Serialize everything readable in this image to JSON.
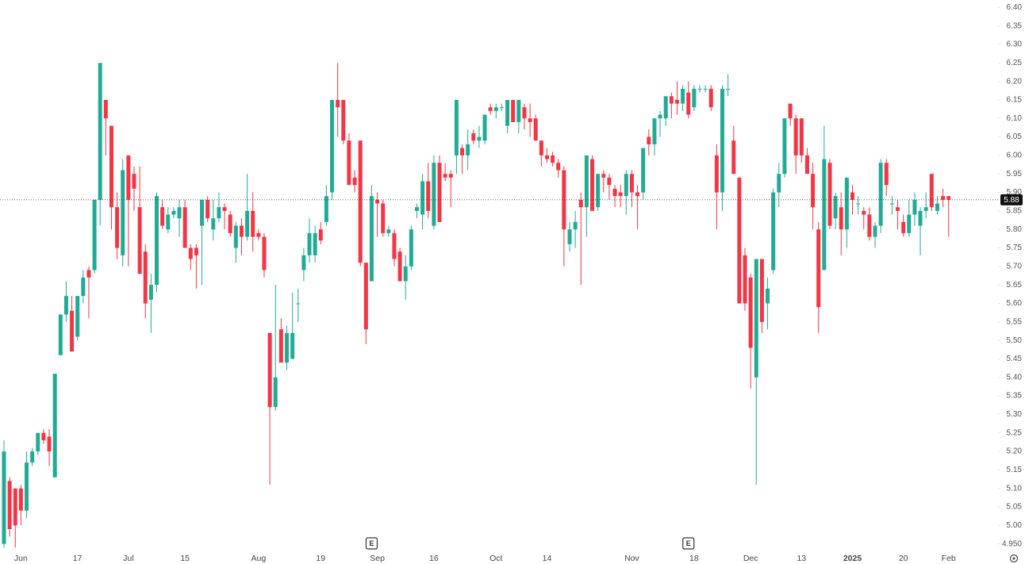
{
  "chart_data": {
    "type": "candlestick",
    "up_color": "#22ab94",
    "down_color": "#f23645",
    "ylim": [
      4.93,
      6.42
    ],
    "yticks": [
      {
        "value": 6.4,
        "label": "6.40"
      },
      6.35,
      {
        "value": 6.3,
        "label": "6.30"
      },
      6.25,
      {
        "value": 6.2,
        "label": "6.20"
      },
      6.15,
      {
        "value": 6.1,
        "label": "6.10"
      },
      6.05,
      {
        "value": 6.0,
        "label": "6.00"
      },
      5.95,
      {
        "value": 5.9,
        "label": "5.90"
      },
      5.85,
      {
        "value": 5.8,
        "label": "5.80"
      },
      5.75,
      {
        "value": 5.7,
        "label": "5.70"
      },
      5.65,
      {
        "value": 5.6,
        "label": "5.60"
      },
      5.55,
      {
        "value": 5.5,
        "label": "5.50"
      },
      5.45,
      {
        "value": 5.4,
        "label": "5.40"
      },
      5.35,
      {
        "value": 5.3,
        "label": "5.30"
      },
      5.25,
      {
        "value": 5.2,
        "label": "5.20"
      },
      5.15,
      {
        "value": 5.1,
        "label": "5.10"
      },
      5.05,
      {
        "value": 5.0,
        "label": "5.00"
      },
      {
        "value": 4.95,
        "label": "4.950"
      }
    ],
    "last_price": 5.88,
    "categories": [
      null,
      null,
      null,
      "Jun",
      null,
      null,
      null,
      null,
      null,
      null,
      null,
      null,
      null,
      "17",
      null,
      null,
      null,
      null,
      null,
      null,
      null,
      null,
      "Jul",
      null,
      null,
      null,
      null,
      null,
      null,
      null,
      null,
      null,
      "15",
      null,
      null,
      null,
      null,
      null,
      null,
      null,
      null,
      null,
      null,
      null,
      null,
      "Aug",
      null,
      null,
      null,
      null,
      null,
      null,
      null,
      null,
      null,
      null,
      "19",
      null,
      null,
      null,
      null,
      null,
      null,
      null,
      null,
      null,
      "Sep",
      null,
      null,
      null,
      null,
      null,
      null,
      null,
      null,
      null,
      "16",
      null,
      null,
      null,
      null,
      null,
      null,
      null,
      null,
      null,
      null,
      "Oct",
      null,
      null,
      null,
      null,
      null,
      null,
      null,
      null,
      "14",
      null,
      null,
      null,
      null,
      null,
      null,
      null,
      null,
      null,
      null,
      null,
      null,
      null,
      null,
      "Nov",
      null,
      null,
      null,
      null,
      null,
      null,
      null,
      null,
      null,
      null,
      "18",
      null,
      null,
      null,
      null,
      null,
      null,
      null,
      null,
      null,
      "Dec",
      null,
      null,
      null,
      null,
      null,
      null,
      null,
      null,
      "13",
      null,
      null,
      null,
      null,
      null,
      null,
      null,
      null,
      "2025",
      null,
      null,
      null,
      null,
      null,
      null,
      null,
      null,
      "20",
      null,
      null,
      null,
      null,
      null,
      null,
      null,
      "Feb"
    ],
    "events": [
      null,
      null,
      null,
      null,
      null,
      null,
      null,
      null,
      null,
      null,
      null,
      null,
      null,
      null,
      null,
      null,
      null,
      null,
      null,
      null,
      null,
      null,
      null,
      null,
      null,
      null,
      null,
      null,
      null,
      null,
      null,
      null,
      null,
      null,
      null,
      null,
      null,
      null,
      null,
      null,
      null,
      null,
      null,
      null,
      null,
      null,
      null,
      null,
      null,
      null,
      null,
      null,
      null,
      null,
      null,
      null,
      null,
      null,
      null,
      null,
      null,
      null,
      null,
      null,
      null,
      "E",
      null,
      null,
      null,
      null,
      null,
      null,
      null,
      null,
      null,
      null,
      null,
      null,
      null,
      null,
      null,
      null,
      null,
      null,
      null,
      null,
      null,
      null,
      null,
      null,
      null,
      null,
      null,
      null,
      null,
      null,
      null,
      null,
      null,
      null,
      null,
      null,
      null,
      null,
      null,
      null,
      null,
      null,
      null,
      null,
      null,
      null,
      null,
      null,
      null,
      null,
      null,
      null,
      null,
      null,
      null,
      "E",
      null,
      null,
      null,
      null,
      null,
      null,
      null,
      null,
      null,
      null,
      null,
      null,
      null,
      null,
      null,
      null,
      null,
      null,
      null,
      null,
      null,
      null,
      null,
      null,
      null,
      null,
      null,
      null,
      null,
      null,
      null,
      null,
      null,
      null,
      null,
      null,
      null,
      null,
      null,
      null,
      null,
      null,
      null,
      null,
      null,
      null
    ],
    "open": [
      4.95,
      5.12,
      5.1,
      5.1,
      5.04,
      5.17,
      5.2,
      5.25,
      5.24,
      5.13,
      5.46,
      5.57,
      5.58,
      5.51,
      5.62,
      5.69,
      5.69,
      5.88,
      6.15,
      6.08,
      5.86,
      5.73,
      6.0,
      5.95,
      5.86,
      5.74,
      5.61,
      5.65,
      5.86,
      5.8,
      5.84,
      5.83,
      5.86,
      5.75,
      5.75,
      5.81,
      5.88,
      5.8,
      5.83,
      5.86,
      5.84,
      5.75,
      5.81,
      5.78,
      5.85,
      5.79,
      5.78,
      5.52,
      5.32,
      5.53,
      5.44,
      5.45,
      5.6,
      5.69,
      5.73,
      5.73,
      5.8,
      5.82,
      5.9,
      6.15,
      6.15,
      6.04,
      5.94,
      6.04,
      5.71,
      5.66,
      5.88,
      5.87,
      5.79,
      5.79,
      5.74,
      5.66,
      5.7,
      5.85,
      5.84,
      5.93,
      5.81,
      5.98,
      5.95,
      5.95,
      6.0,
      6.02,
      6.0,
      6.06,
      6.04,
      6.04,
      6.13,
      6.12,
      6.13,
      6.08,
      6.15,
      6.09,
      6.13,
      6.1,
      6.1,
      6.04,
      6.0,
      6.0,
      5.98,
      5.96,
      5.76,
      5.8,
      5.88,
      5.86,
      5.99,
      5.86,
      5.95,
      5.94,
      5.91,
      5.9,
      5.89,
      5.95,
      5.9,
      5.9,
      6.05,
      6.03,
      6.1,
      6.1,
      6.16,
      6.15,
      6.14,
      6.17,
      6.13,
      6.18,
      6.18,
      6.18,
      6.0,
      5.9,
      6.18,
      6.04,
      5.94,
      5.73,
      5.67,
      5.4,
      5.72,
      5.6,
      5.69,
      5.9,
      5.95,
      6.14,
      6.1,
      6.1,
      6.0,
      5.95,
      5.8,
      5.69,
      5.98,
      5.83,
      5.86,
      5.8,
      5.9,
      5.87,
      5.85,
      5.84,
      5.78,
      5.81,
      5.98,
      5.87,
      5.86,
      5.82,
      5.79,
      5.84,
      5.81,
      5.85,
      5.95,
      5.85,
      5.89,
      5.89
    ],
    "high": [
      5.23,
      5.13,
      5.1,
      5.11,
      5.2,
      5.21,
      5.25,
      5.26,
      5.26,
      5.41,
      5.57,
      5.66,
      5.62,
      5.62,
      5.69,
      5.7,
      5.88,
      6.25,
      6.15,
      6.08,
      5.9,
      5.99,
      6.0,
      5.97,
      5.97,
      5.76,
      5.68,
      5.9,
      5.88,
      5.86,
      5.86,
      5.88,
      5.88,
      5.76,
      5.76,
      5.88,
      5.89,
      5.88,
      5.9,
      5.87,
      5.85,
      5.82,
      5.83,
      5.95,
      5.9,
      5.8,
      5.79,
      5.52,
      5.65,
      5.56,
      5.54,
      5.63,
      5.64,
      5.75,
      5.83,
      5.81,
      5.82,
      5.92,
      6.15,
      6.25,
      6.15,
      6.06,
      5.96,
      6.04,
      5.71,
      5.92,
      5.9,
      5.88,
      5.81,
      5.8,
      5.75,
      5.73,
      5.81,
      5.87,
      5.95,
      5.98,
      6.0,
      6.0,
      5.98,
      5.96,
      6.15,
      6.03,
      6.07,
      6.07,
      6.08,
      6.11,
      6.14,
      6.14,
      6.14,
      6.15,
      6.15,
      6.15,
      6.14,
      6.14,
      6.11,
      6.04,
      6.02,
      6.01,
      5.99,
      5.97,
      5.82,
      5.85,
      5.9,
      6.0,
      6.0,
      5.95,
      5.96,
      5.95,
      5.92,
      5.92,
      5.96,
      5.96,
      5.92,
      6.02,
      6.07,
      6.1,
      6.12,
      6.16,
      6.17,
      6.2,
      6.19,
      6.2,
      6.19,
      6.19,
      6.19,
      6.19,
      6.03,
      6.19,
      6.22,
      6.08,
      5.94,
      5.75,
      5.68,
      5.72,
      5.72,
      5.67,
      5.91,
      5.98,
      6.1,
      6.14,
      6.11,
      6.1,
      6.02,
      5.98,
      5.82,
      6.08,
      5.99,
      5.9,
      5.9,
      5.94,
      5.92,
      5.89,
      5.86,
      5.86,
      5.82,
      5.99,
      5.99,
      5.89,
      5.88,
      5.84,
      5.88,
      5.9,
      5.86,
      5.9,
      5.95,
      5.89,
      5.91,
      5.89
    ],
    "low": [
      4.94,
      4.97,
      4.94,
      5.0,
      5.02,
      5.16,
      5.19,
      5.22,
      5.16,
      5.13,
      5.46,
      5.55,
      5.47,
      5.5,
      5.6,
      5.56,
      5.68,
      5.81,
      6.0,
      5.8,
      5.72,
      5.7,
      5.7,
      5.85,
      5.68,
      5.56,
      5.52,
      5.63,
      5.8,
      5.79,
      5.83,
      5.78,
      5.75,
      5.69,
      5.64,
      5.65,
      5.82,
      5.77,
      5.82,
      5.8,
      5.78,
      5.71,
      5.73,
      5.77,
      5.74,
      5.77,
      5.67,
      5.11,
      5.31,
      5.44,
      5.42,
      5.45,
      5.55,
      5.66,
      5.71,
      5.71,
      5.76,
      5.81,
      5.88,
      6.05,
      6.03,
      5.92,
      5.9,
      5.7,
      5.49,
      5.66,
      5.78,
      5.78,
      5.78,
      5.7,
      5.66,
      5.61,
      5.69,
      5.83,
      5.8,
      5.83,
      5.8,
      5.82,
      5.93,
      5.86,
      5.95,
      5.95,
      5.96,
      6.03,
      6.02,
      6.03,
      6.11,
      6.1,
      6.12,
      6.06,
      6.09,
      6.06,
      6.07,
      6.05,
      6.04,
      5.97,
      5.98,
      5.97,
      5.94,
      5.7,
      5.74,
      5.75,
      5.65,
      5.78,
      5.85,
      5.85,
      5.9,
      5.88,
      5.86,
      5.86,
      5.84,
      5.86,
      5.8,
      5.88,
      6.0,
      6.0,
      6.05,
      6.08,
      6.1,
      6.11,
      6.12,
      6.1,
      6.12,
      6.17,
      6.17,
      6.12,
      5.8,
      5.85,
      6.16,
      5.95,
      5.6,
      5.58,
      5.37,
      5.11,
      5.52,
      5.53,
      5.68,
      5.86,
      5.94,
      6.08,
      5.95,
      5.98,
      5.95,
      5.8,
      5.52,
      5.69,
      5.8,
      5.8,
      5.73,
      5.75,
      5.84,
      5.84,
      5.8,
      5.77,
      5.75,
      5.79,
      5.89,
      5.84,
      5.8,
      5.78,
      5.78,
      5.81,
      5.73,
      5.83,
      5.85,
      5.84,
      5.86,
      5.78
    ],
    "close": [
      5.2,
      4.99,
      5.0,
      5.04,
      5.17,
      5.2,
      5.25,
      5.23,
      5.2,
      5.41,
      5.57,
      5.62,
      5.47,
      5.62,
      5.67,
      5.67,
      5.88,
      6.25,
      6.1,
      5.86,
      5.75,
      5.96,
      5.88,
      5.91,
      5.68,
      5.6,
      5.65,
      5.89,
      5.81,
      5.84,
      5.85,
      5.86,
      5.75,
      5.72,
      5.73,
      5.88,
      5.83,
      5.83,
      5.86,
      5.85,
      5.79,
      5.81,
      5.78,
      5.85,
      5.78,
      5.78,
      5.69,
      5.32,
      5.4,
      5.44,
      5.52,
      5.52,
      5.6,
      5.73,
      5.79,
      5.79,
      5.77,
      5.89,
      6.15,
      6.13,
      6.04,
      5.92,
      5.92,
      5.71,
      5.53,
      5.89,
      5.87,
      5.79,
      5.8,
      5.72,
      5.66,
      5.7,
      5.8,
      5.86,
      5.93,
      5.85,
      5.98,
      5.82,
      5.94,
      5.94,
      6.15,
      6.0,
      6.03,
      6.04,
      6.05,
      6.11,
      6.12,
      6.13,
      6.13,
      6.15,
      6.09,
      6.15,
      6.1,
      6.09,
      6.04,
      6.0,
      5.99,
      5.98,
      5.96,
      5.8,
      5.8,
      5.82,
      5.86,
      6.0,
      5.85,
      5.95,
      5.94,
      5.92,
      5.89,
      5.89,
      5.95,
      5.9,
      5.89,
      6.02,
      6.03,
      6.1,
      6.11,
      6.16,
      6.14,
      6.14,
      6.18,
      6.11,
      6.18,
      6.18,
      6.18,
      6.13,
      5.9,
      6.18,
      6.18,
      5.95,
      5.6,
      5.6,
      5.48,
      5.72,
      5.55,
      5.64,
      5.9,
      5.95,
      6.1,
      6.1,
      6.0,
      6.0,
      5.95,
      5.86,
      5.59,
      5.99,
      5.81,
      5.89,
      5.8,
      5.94,
      5.88,
      5.87,
      5.84,
      5.78,
      5.81,
      5.98,
      5.92,
      5.87,
      5.85,
      5.79,
      5.84,
      5.88,
      5.85,
      5.86,
      5.86,
      5.87,
      5.88,
      5.88
    ]
  }
}
